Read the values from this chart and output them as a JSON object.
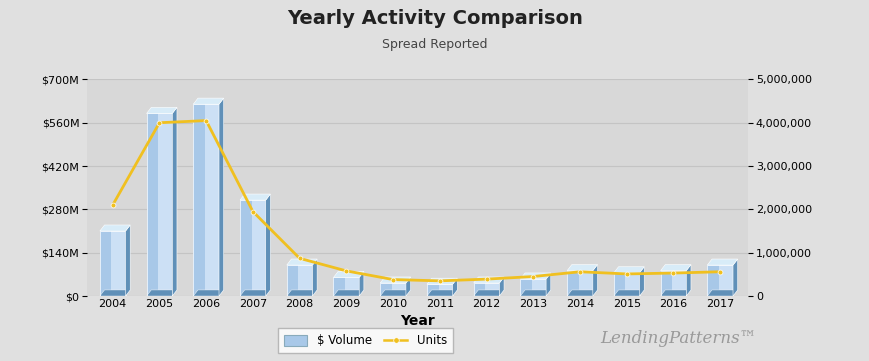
{
  "title": "Yearly Activity Comparison",
  "subtitle": "Spread Reported",
  "xlabel": "Year",
  "years": [
    2004,
    2005,
    2006,
    2007,
    2008,
    2009,
    2010,
    2011,
    2012,
    2013,
    2014,
    2015,
    2016,
    2017
  ],
  "volume": [
    210000000,
    590000000,
    620000000,
    310000000,
    100000000,
    60000000,
    42000000,
    38000000,
    42000000,
    55000000,
    82000000,
    75000000,
    82000000,
    100000000
  ],
  "units": [
    2100000,
    4000000,
    4050000,
    1950000,
    870000,
    580000,
    380000,
    350000,
    390000,
    450000,
    560000,
    510000,
    530000,
    560000
  ],
  "ylim_left": [
    0,
    700000000
  ],
  "ylim_right": [
    0,
    5000000
  ],
  "bar_color_face": "#a8c8e8",
  "bar_color_light": "#cce0f5",
  "bar_color_dark": "#7aa8cc",
  "bar_color_top": "#d8ecf8",
  "bar_color_side": "#6090b8",
  "line_color": "#f0c020",
  "bg_color": "#e0e0e0",
  "plot_bg_color": "#d8d8d8",
  "grid_color": "#c4c4c4",
  "watermark": "LendingPatterns™",
  "legend_volume": "$ Volume",
  "legend_units": "Units",
  "title_fontsize": 14,
  "subtitle_fontsize": 9,
  "tick_fontsize": 8
}
